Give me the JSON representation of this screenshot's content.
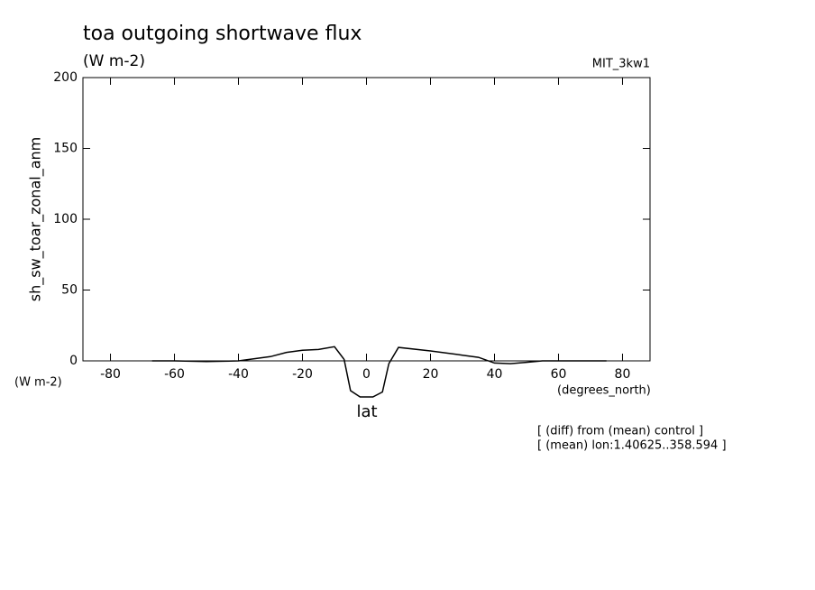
{
  "chart_data": {
    "type": "line",
    "title": "toa outgoing shortwave flux",
    "subtitle": "(W m-2)",
    "dataset": "MIT_3kw1",
    "y_label": "sh_sw_toar_zonal_anm",
    "y_units": "(W m-2)",
    "x_units": "(degrees_north)",
    "x_label": "lat",
    "notes": [
      "[ (diff) from (mean) control ]",
      "[ (mean) lon:1.40625..358.594 ]"
    ],
    "x": [
      -67,
      -60,
      -50,
      -40,
      -35,
      -30,
      -25,
      -20,
      -15,
      -10,
      -7,
      -5,
      -2,
      2,
      5,
      7,
      10,
      20,
      30,
      35,
      40,
      45,
      50,
      55,
      60,
      70,
      75
    ],
    "series": [
      {
        "name": "sh_sw_toar_zonal_anm",
        "color": "#000000",
        "values": [
          0,
          0,
          -0.5,
          0,
          1.5,
          3,
          6,
          7.5,
          8,
          10,
          1,
          -21,
          -25.5,
          -25.5,
          -22,
          -2,
          9.5,
          7,
          4,
          2.5,
          -1.5,
          -2,
          -1,
          0,
          0,
          0,
          0
        ]
      }
    ],
    "xlim": [
      -88.6,
      88.6
    ],
    "ylim": [
      0,
      200
    ],
    "xticks": [
      -80,
      -60,
      -40,
      -20,
      0,
      20,
      40,
      60,
      80
    ],
    "yticks": [
      0,
      50,
      100,
      150,
      200
    ]
  }
}
